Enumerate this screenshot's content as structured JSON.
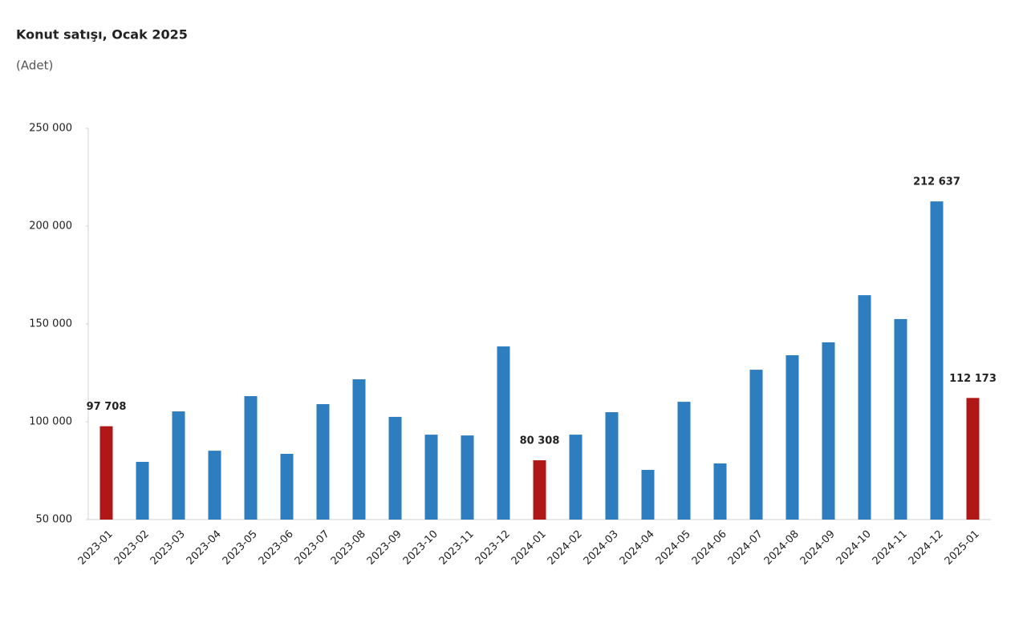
{
  "chart_data": {
    "type": "bar",
    "title": "Konut satışı, Ocak 2025",
    "subtitle": "(Adet)",
    "categories": [
      "2023-01",
      "2023-02",
      "2023-03",
      "2023-04",
      "2023-05",
      "2023-06",
      "2023-07",
      "2023-08",
      "2023-09",
      "2023-10",
      "2023-11",
      "2023-12",
      "2024-01",
      "2024-02",
      "2024-03",
      "2024-04",
      "2024-05",
      "2024-06",
      "2024-07",
      "2024-08",
      "2024-09",
      "2024-10",
      "2024-11",
      "2024-12",
      "2025-01"
    ],
    "values": [
      97708,
      79500,
      105300,
      85200,
      113100,
      83600,
      109000,
      121700,
      102500,
      93400,
      93000,
      138500,
      80308,
      93400,
      104900,
      75400,
      110200,
      78700,
      126600,
      134000,
      140600,
      164700,
      152500,
      212637,
      112173
    ],
    "value_labels": [
      "97 708",
      null,
      null,
      null,
      null,
      null,
      null,
      null,
      null,
      null,
      null,
      null,
      "80 308",
      null,
      null,
      null,
      null,
      null,
      null,
      null,
      null,
      null,
      null,
      "212 637",
      "112 173"
    ],
    "colors": [
      "#b01818",
      "#2e7ebf",
      "#2e7ebf",
      "#2e7ebf",
      "#2e7ebf",
      "#2e7ebf",
      "#2e7ebf",
      "#2e7ebf",
      "#2e7ebf",
      "#2e7ebf",
      "#2e7ebf",
      "#2e7ebf",
      "#b01818",
      "#2e7ebf",
      "#2e7ebf",
      "#2e7ebf",
      "#2e7ebf",
      "#2e7ebf",
      "#2e7ebf",
      "#2e7ebf",
      "#2e7ebf",
      "#2e7ebf",
      "#2e7ebf",
      "#2e7ebf",
      "#b01818"
    ],
    "ylim": [
      50000,
      250000
    ],
    "yticks": [
      {
        "value": 50000,
        "label": "50 000"
      },
      {
        "value": 100000,
        "label": "100 000"
      },
      {
        "value": 150000,
        "label": "150 000"
      },
      {
        "value": 200000,
        "label": "200 000"
      },
      {
        "value": 250000,
        "label": "250 000"
      }
    ],
    "grid": false
  }
}
